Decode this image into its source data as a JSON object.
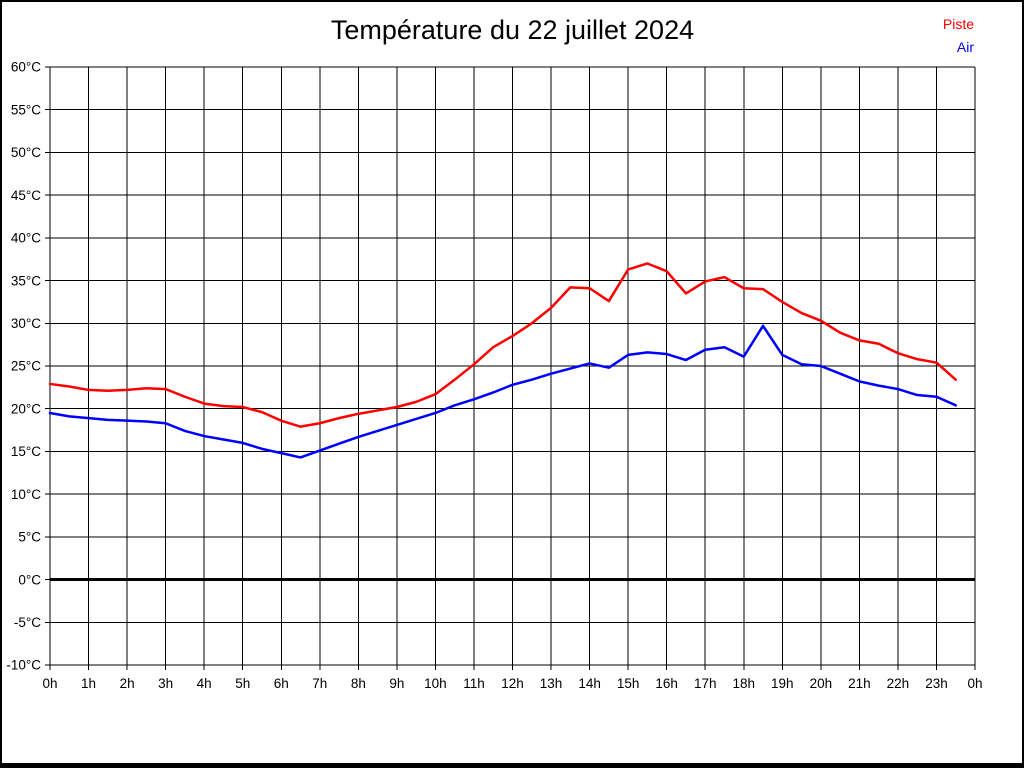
{
  "title": "Température du 22 juillet 2024",
  "legend": [
    {
      "label": "Piste",
      "color": "#ff0000"
    },
    {
      "label": "Air",
      "color": "#0000ff"
    }
  ],
  "colors": {
    "background": "#ffffff",
    "grid": "#000000",
    "frame_border": "#000000",
    "zero_line": "#000000"
  },
  "chart_data": {
    "type": "line",
    "title": "Température du 22 juillet 2024",
    "xlabel": "",
    "ylabel": "",
    "xlim": [
      0,
      24
    ],
    "ylim": [
      -10,
      60
    ],
    "y_tick_step": 5,
    "grid": true,
    "legend_position": "top-right",
    "x_tick_labels": [
      "0h",
      "1h",
      "2h",
      "3h",
      "4h",
      "5h",
      "6h",
      "7h",
      "8h",
      "9h",
      "10h",
      "11h",
      "12h",
      "13h",
      "14h",
      "15h",
      "16h",
      "17h",
      "18h",
      "19h",
      "20h",
      "21h",
      "22h",
      "23h",
      "0h"
    ],
    "y_tick_labels": [
      "60°C",
      "55°C",
      "50°C",
      "45°C",
      "40°C",
      "35°C",
      "30°C",
      "25°C",
      "20°C",
      "15°C",
      "10°C",
      "5°C",
      "0°C",
      "-5°C",
      "-10°C"
    ],
    "x": [
      0,
      0.5,
      1,
      1.5,
      2,
      2.5,
      3,
      3.5,
      4,
      4.5,
      5,
      5.5,
      6,
      6.5,
      7,
      7.5,
      8,
      8.5,
      9,
      9.5,
      10,
      10.5,
      11,
      11.5,
      12,
      12.5,
      13,
      13.5,
      14,
      14.5,
      15,
      15.5,
      16,
      16.5,
      17,
      17.5,
      18,
      18.5,
      19,
      19.5,
      20,
      20.5,
      21,
      21.5,
      22,
      22.5,
      23,
      23.5
    ],
    "series": [
      {
        "name": "Piste",
        "color": "#ff0000",
        "values": [
          22.9,
          22.6,
          22.2,
          22.1,
          22.2,
          22.4,
          22.3,
          21.4,
          20.6,
          20.3,
          20.2,
          19.6,
          18.6,
          17.9,
          18.3,
          18.9,
          19.4,
          19.8,
          20.2,
          20.8,
          21.7,
          23.4,
          25.2,
          27.2,
          28.5,
          30.0,
          31.8,
          34.2,
          34.1,
          32.6,
          36.3,
          37.0,
          36.1,
          33.5,
          34.9,
          35.4,
          34.1,
          34.0,
          32.5,
          31.2,
          30.3,
          28.9,
          28.0,
          27.6,
          26.5,
          25.8,
          25.4,
          23.4
        ]
      },
      {
        "name": "Air",
        "color": "#0000ff",
        "values": [
          19.5,
          19.1,
          18.9,
          18.7,
          18.6,
          18.5,
          18.3,
          17.4,
          16.8,
          16.4,
          16.0,
          15.3,
          14.8,
          14.3,
          15.1,
          15.9,
          16.7,
          17.4,
          18.1,
          18.8,
          19.5,
          20.4,
          21.1,
          21.9,
          22.8,
          23.4,
          24.1,
          24.7,
          25.3,
          24.8,
          26.3,
          26.6,
          26.4,
          25.7,
          26.9,
          27.2,
          26.1,
          29.7,
          26.3,
          25.2,
          25.0,
          24.1,
          23.2,
          22.7,
          22.3,
          21.6,
          21.4,
          20.4
        ]
      }
    ],
    "zero_line": {
      "value": 0,
      "width": 3
    }
  }
}
